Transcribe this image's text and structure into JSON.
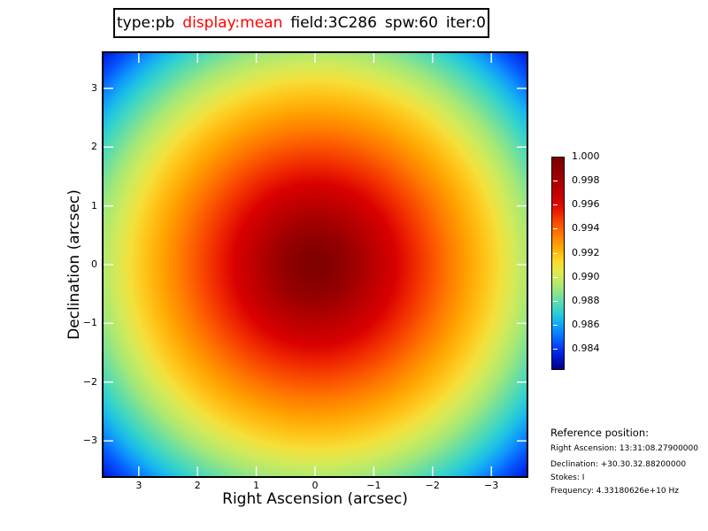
{
  "title": {
    "segments": [
      {
        "text": "type:pb",
        "color": "#000000"
      },
      {
        "text": "display:mean",
        "color": "#ff0000"
      },
      {
        "text": "field:3C286",
        "color": "#000000"
      },
      {
        "text": "spw:60",
        "color": "#000000"
      },
      {
        "text": "iter:0",
        "color": "#000000"
      }
    ]
  },
  "plot": {
    "xlabel": "Right Ascension (arcsec)",
    "ylabel": "Declination (arcsec)",
    "x_tick_labels": [
      "3",
      "2",
      "1",
      "0",
      "−1",
      "−2",
      "−3"
    ],
    "y_tick_labels": [
      "3",
      "2",
      "1",
      "0",
      "−1",
      "−2",
      "−3"
    ]
  },
  "colorbar": {
    "labels": [
      "1.000",
      "0.998",
      "0.996",
      "0.994",
      "0.992",
      "0.990",
      "0.988",
      "0.986",
      "0.984"
    ]
  },
  "reference": {
    "header": "Reference position:",
    "lines": [
      "Right Ascension: 13:31:08.27900000",
      "Declination: +30.30.32.88200000",
      "Stokes: I",
      "Frequency: 4.33180626e+10 Hz"
    ]
  },
  "colors": {
    "title_highlight": "#ff0000",
    "tick_marks": "#ffffff",
    "peak": "#7c0000",
    "edge": "#0018dd"
  },
  "chart_data": {
    "type": "heatmap",
    "title": "type:pb  display:mean  field:3C286  spw:60  iter:0",
    "xlabel": "Right Ascension (arcsec)",
    "ylabel": "Declination (arcsec)",
    "x_ticks": [
      3,
      2,
      1,
      0,
      -1,
      -2,
      -3
    ],
    "y_ticks": [
      3,
      2,
      1,
      0,
      -1,
      -2,
      -3
    ],
    "x_range": [
      3.6,
      -3.6
    ],
    "y_range": [
      -3.6,
      3.6
    ],
    "grid": false,
    "colormap": "jet",
    "colorbar_ticks": [
      1.0,
      0.998,
      0.996,
      0.994,
      0.992,
      0.99,
      0.988,
      0.986,
      0.984
    ],
    "value_range": [
      0.982,
      1.0
    ],
    "legend_position": "right-colorbar",
    "description": "Radially symmetric primary-beam response, peak value 1.000 at center (0,0), decreasing smoothly with radius; corners of the 7.2x7.2 arcsec field reach ~0.982.",
    "radial_profile_estimate": [
      {
        "radius_arcsec": 0.0,
        "value": 1.0
      },
      {
        "radius_arcsec": 0.5,
        "value": 0.9998
      },
      {
        "radius_arcsec": 1.0,
        "value": 0.9993
      },
      {
        "radius_arcsec": 1.5,
        "value": 0.9984
      },
      {
        "radius_arcsec": 2.0,
        "value": 0.9972
      },
      {
        "radius_arcsec": 2.5,
        "value": 0.9957
      },
      {
        "radius_arcsec": 3.0,
        "value": 0.9937
      },
      {
        "radius_arcsec": 3.6,
        "value": 0.991
      },
      {
        "radius_arcsec": 5.1,
        "value": 0.9823
      }
    ]
  }
}
